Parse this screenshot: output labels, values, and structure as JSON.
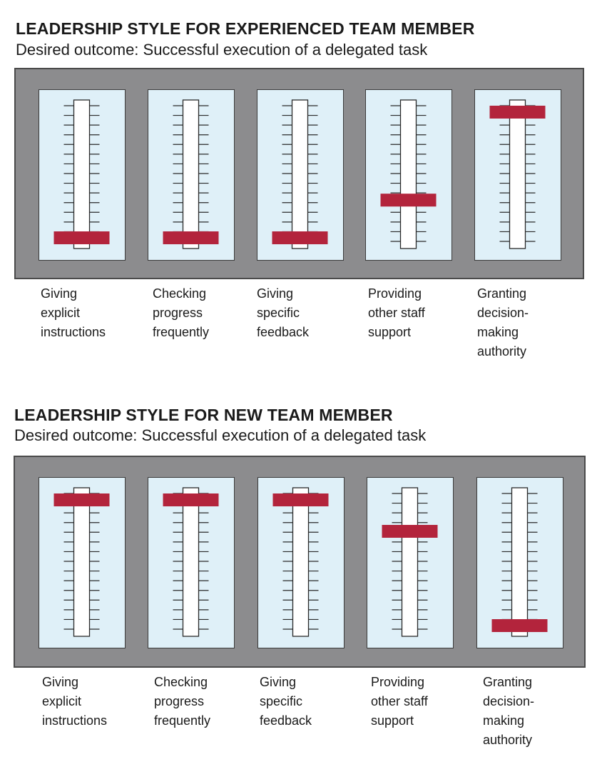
{
  "sections": [
    {
      "title": "LEADERSHIP STYLE FOR EXPERIENCED TEAM MEMBER",
      "subtitle": "Desired outcome: Successful execution of a delegated task",
      "sliders": [
        {
          "label_lines": [
            "Giving",
            "explicit",
            "instructions"
          ],
          "level": 0.0
        },
        {
          "label_lines": [
            "Checking",
            "progress",
            "frequently"
          ],
          "level": 0.0
        },
        {
          "label_lines": [
            "Giving",
            "specific",
            "feedback"
          ],
          "level": 0.0
        },
        {
          "label_lines": [
            "Providing",
            "other staff",
            "support"
          ],
          "level": 0.3
        },
        {
          "label_lines": [
            "Granting",
            "decision-",
            "making",
            "authority"
          ],
          "level": 1.0
        }
      ]
    },
    {
      "title": "LEADERSHIP STYLE FOR NEW TEAM MEMBER",
      "subtitle": "Desired outcome: Successful execution of a delegated task",
      "sliders": [
        {
          "label_lines": [
            "Giving",
            "explicit",
            "instructions"
          ],
          "level": 1.0
        },
        {
          "label_lines": [
            "Checking",
            "progress",
            "frequently"
          ],
          "level": 1.0
        },
        {
          "label_lines": [
            "Giving",
            "specific",
            "feedback"
          ],
          "level": 1.0
        },
        {
          "label_lines": [
            "Providing",
            "other staff",
            "support"
          ],
          "level": 0.75
        },
        {
          "label_lines": [
            "Granting",
            "decision-",
            "making",
            "authority"
          ],
          "level": 0.0
        }
      ]
    }
  ],
  "colors": {
    "panel": "#8c8c8e",
    "card": "#dff0f8",
    "handle": "#b3243c",
    "track": "#ffffff"
  }
}
